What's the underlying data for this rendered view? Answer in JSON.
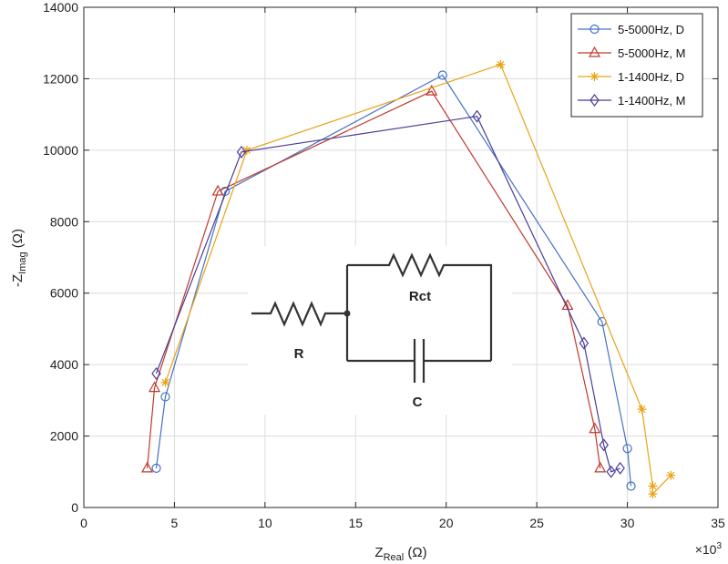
{
  "chart_data": {
    "type": "scatter",
    "xlabel": {
      "base": "Z",
      "sub": "Real",
      "unit": " (Ω)"
    },
    "ylabel": {
      "base": "-Z",
      "sub": "Imag",
      "unit": " (Ω)"
    },
    "x_multiplier": "×10",
    "x_multiplier_exp": "3",
    "xlim": [
      0,
      35
    ],
    "ylim": [
      0,
      14000
    ],
    "xticks": [
      "0",
      "5",
      "10",
      "15",
      "20",
      "25",
      "30",
      "35"
    ],
    "yticks": [
      "0",
      "2000",
      "4000",
      "6000",
      "8000",
      "10000",
      "12000",
      "14000"
    ],
    "grid": true,
    "legend_position": "top-right",
    "series": [
      {
        "name": "5-5000Hz, D",
        "color": "#4472C4",
        "marker": "circle",
        "points": [
          [
            4.0,
            1100
          ],
          [
            4.5,
            3100
          ],
          [
            7.8,
            8850
          ],
          [
            19.8,
            12100
          ],
          [
            28.6,
            5200
          ],
          [
            30.0,
            1650
          ],
          [
            30.2,
            600
          ]
        ]
      },
      {
        "name": "5-5000Hz, M",
        "color": "#C0392B",
        "marker": "triangle",
        "points": [
          [
            3.5,
            1100
          ],
          [
            3.9,
            3350
          ],
          [
            7.4,
            8850
          ],
          [
            19.2,
            11650
          ],
          [
            26.7,
            5650
          ],
          [
            28.2,
            2200
          ],
          [
            28.5,
            1100
          ]
        ]
      },
      {
        "name": "1-1400Hz, D",
        "color": "#E8A317",
        "marker": "star",
        "points": [
          [
            4.5,
            3500
          ],
          [
            9.0,
            10000
          ],
          [
            23.0,
            12400
          ],
          [
            30.8,
            2750
          ],
          [
            31.4,
            600
          ],
          [
            31.4,
            380
          ],
          [
            32.4,
            900
          ]
        ]
      },
      {
        "name": "1-1400Hz, M",
        "color": "#4B3C96",
        "marker": "diamond",
        "points": [
          [
            4.0,
            3750
          ],
          [
            8.7,
            9950
          ],
          [
            21.7,
            10950
          ],
          [
            27.6,
            4600
          ],
          [
            28.7,
            1750
          ],
          [
            29.1,
            1000
          ],
          [
            29.6,
            1100
          ]
        ]
      }
    ]
  },
  "inset": {
    "resistor_label": "R",
    "charge_transfer_label": "Rct",
    "capacitor_label": "C"
  }
}
